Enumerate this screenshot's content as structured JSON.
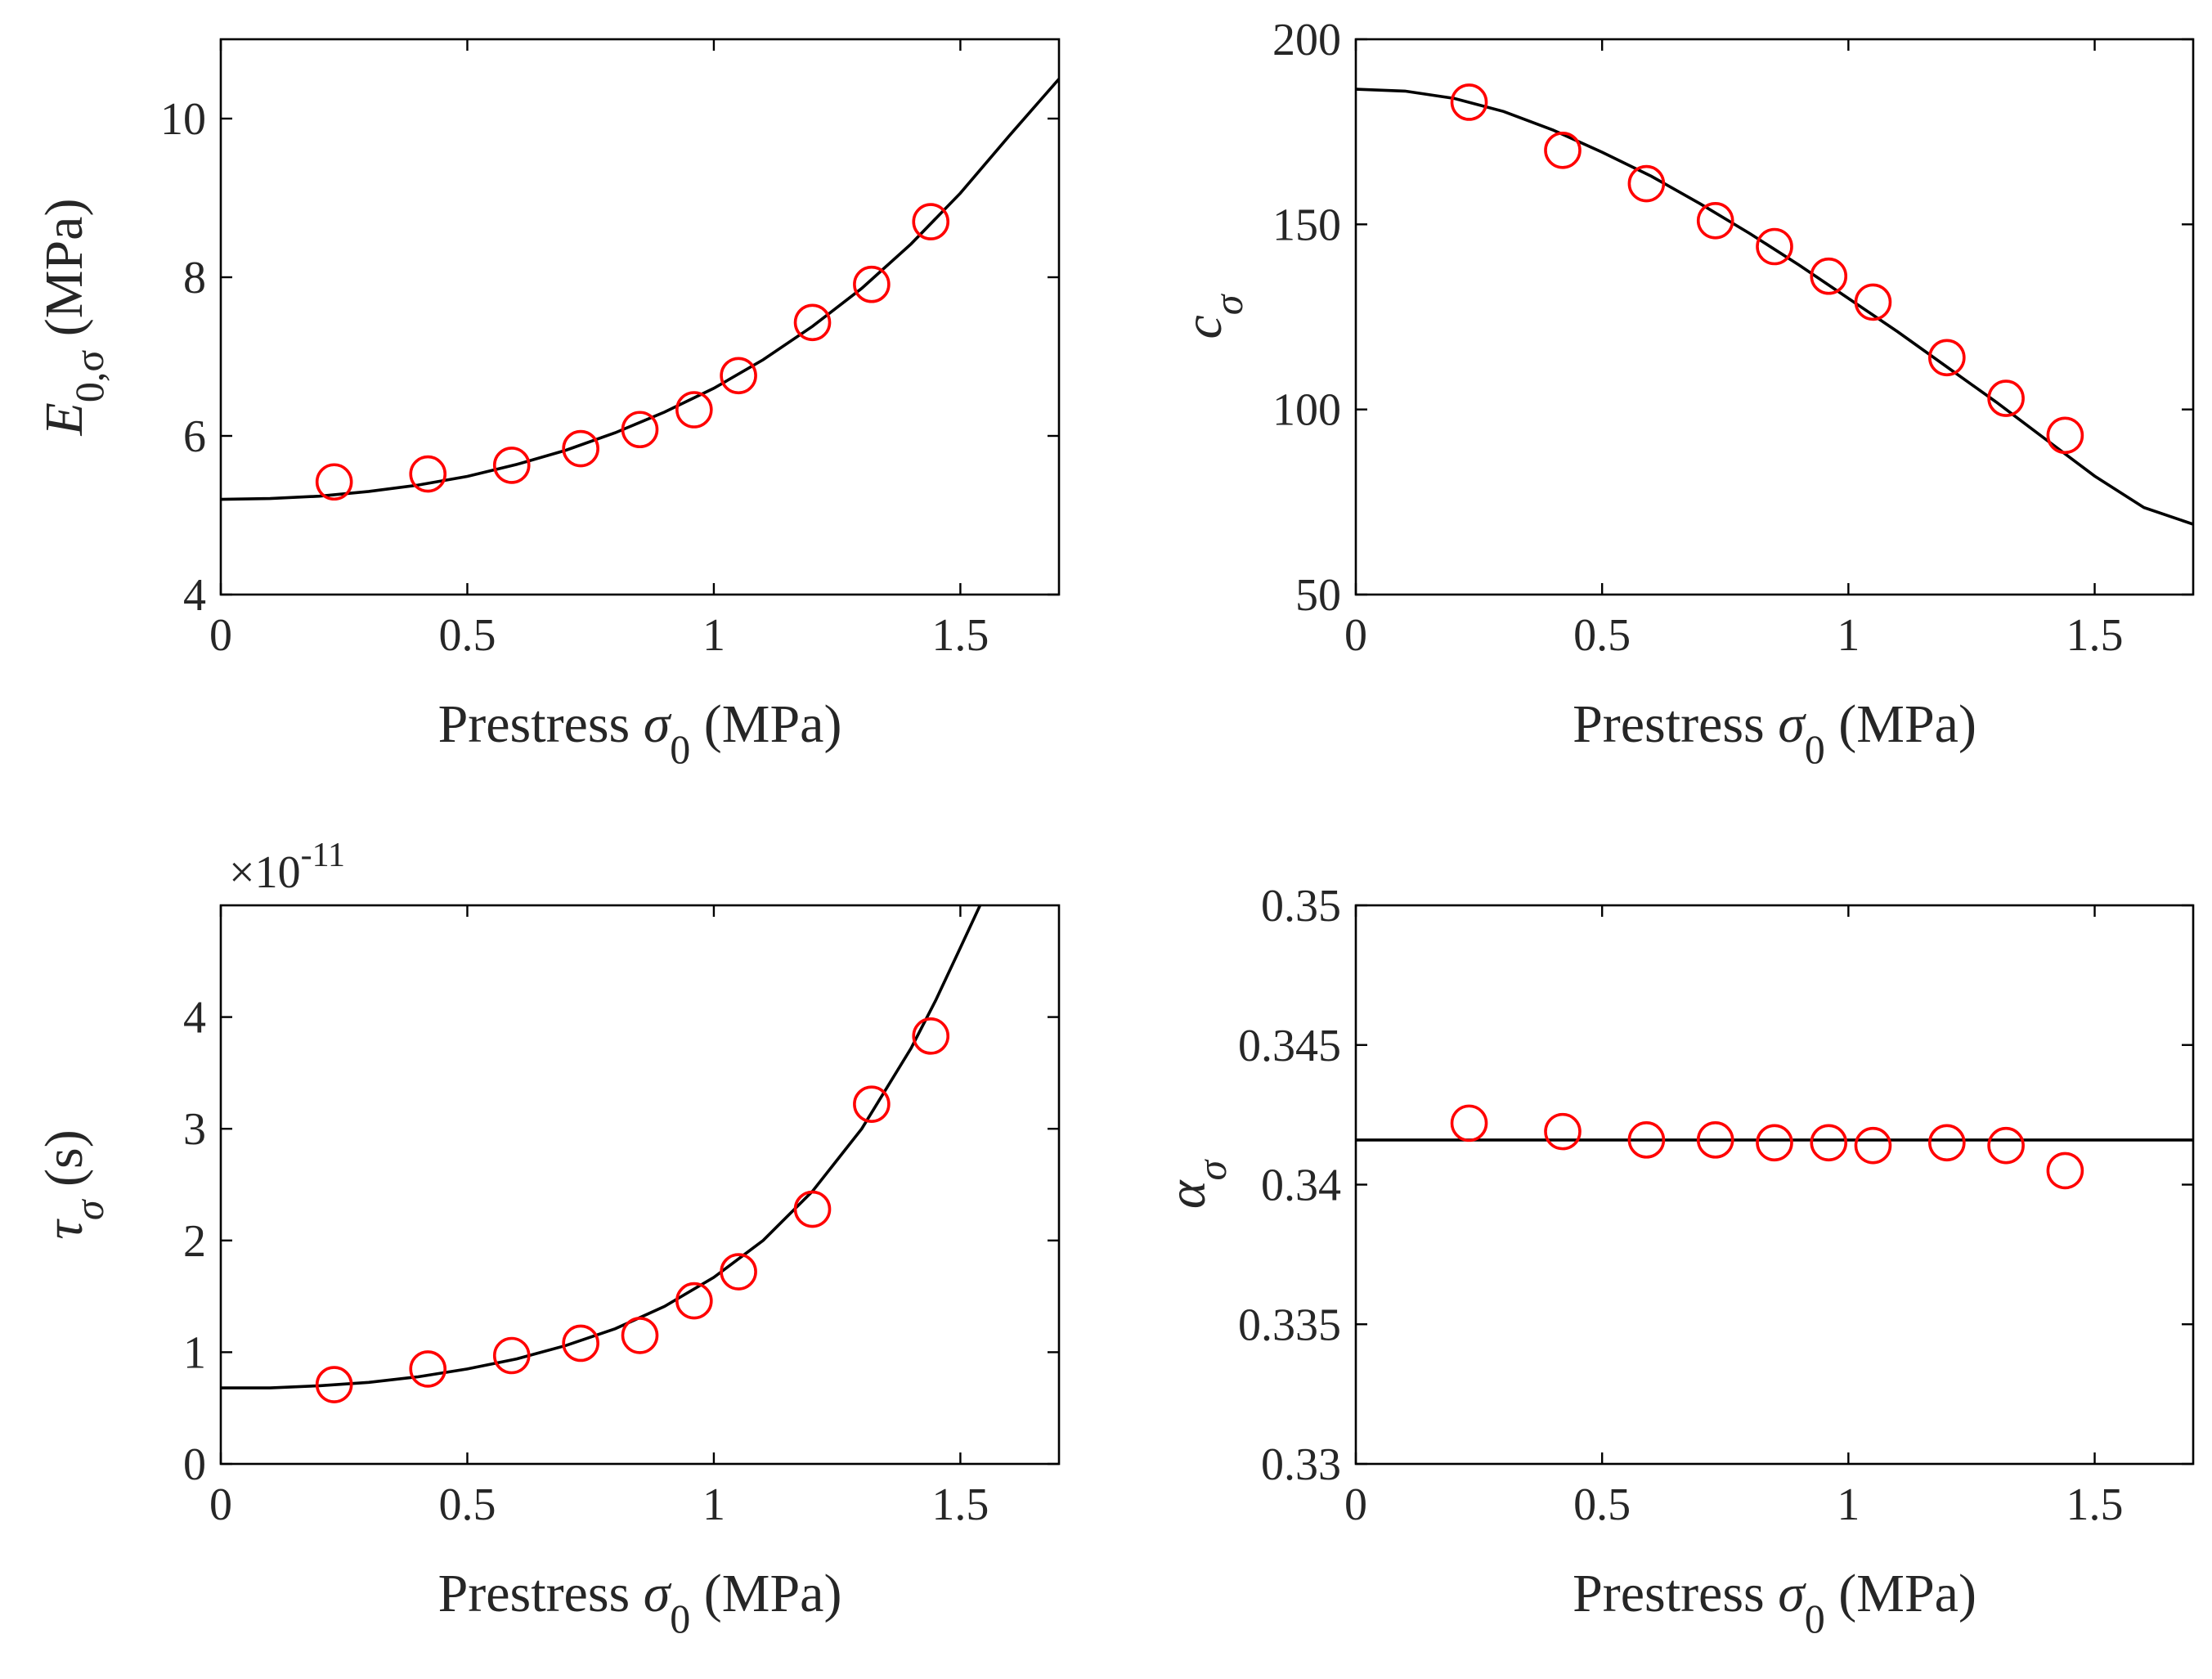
{
  "figure": {
    "panels": [
      "E0",
      "c",
      "tau",
      "alpha"
    ]
  },
  "chart_data": [
    {
      "id": "E0",
      "type": "scatter",
      "xlabel_prefix": "Prestress",
      "xlabel_symbol": "σ",
      "xlabel_sub": "0",
      "xlabel_unit": "(MPa)",
      "ylabel_symbol": "E",
      "ylabel_sub": "0,σ",
      "ylabel_unit": "(MPa)",
      "xlim": [
        0,
        1.7
      ],
      "ylim": [
        4,
        11
      ],
      "xticks": [
        0,
        0.5,
        1,
        1.5
      ],
      "xtick_labels": [
        "0",
        "0.5",
        "1",
        "1.5"
      ],
      "yticks": [
        4,
        6,
        8,
        10
      ],
      "ytick_labels": [
        "4",
        "6",
        "8",
        "10"
      ],
      "exponent_label": "",
      "marker_color": "#ff0000",
      "line_color": "#000000",
      "points_x": [
        0.23,
        0.42,
        0.59,
        0.73,
        0.85,
        0.96,
        1.05,
        1.2,
        1.32,
        1.44
      ],
      "points_y": [
        5.42,
        5.52,
        5.63,
        5.84,
        6.08,
        6.33,
        6.76,
        7.43,
        7.91,
        8.7
      ],
      "fit_x": [
        0,
        0.1,
        0.2,
        0.3,
        0.4,
        0.5,
        0.6,
        0.7,
        0.8,
        0.9,
        1.0,
        1.1,
        1.2,
        1.3,
        1.4,
        1.5,
        1.6,
        1.7
      ],
      "fit_y": [
        5.2,
        5.21,
        5.24,
        5.3,
        5.38,
        5.49,
        5.64,
        5.82,
        6.04,
        6.3,
        6.6,
        6.96,
        7.38,
        7.86,
        8.42,
        9.06,
        9.79,
        10.5
      ]
    },
    {
      "id": "c",
      "type": "scatter",
      "xlabel_prefix": "Prestress",
      "xlabel_symbol": "σ",
      "xlabel_sub": "0",
      "xlabel_unit": "(MPa)",
      "ylabel_symbol": "c",
      "ylabel_sub": "σ",
      "ylabel_unit": "",
      "xlim": [
        0,
        1.7
      ],
      "ylim": [
        50,
        200
      ],
      "xticks": [
        0,
        0.5,
        1,
        1.5
      ],
      "xtick_labels": [
        "0",
        "0.5",
        "1",
        "1.5"
      ],
      "yticks": [
        50,
        100,
        150,
        200
      ],
      "ytick_labels": [
        "50",
        "100",
        "150",
        "200"
      ],
      "exponent_label": "",
      "marker_color": "#ff0000",
      "line_color": "#000000",
      "points_x": [
        0.23,
        0.42,
        0.59,
        0.73,
        0.85,
        0.96,
        1.05,
        1.2,
        1.32,
        1.44
      ],
      "points_y": [
        183,
        170,
        161,
        151,
        144,
        136,
        129,
        114,
        103,
        93
      ],
      "fit_x": [
        0,
        0.1,
        0.2,
        0.3,
        0.4,
        0.5,
        0.6,
        0.7,
        0.8,
        0.9,
        1.0,
        1.1,
        1.2,
        1.3,
        1.4,
        1.5,
        1.6,
        1.7
      ],
      "fit_y": [
        186.5,
        186,
        184,
        180.5,
        175.5,
        169.5,
        163,
        155.5,
        147.5,
        139,
        130,
        121,
        111.5,
        102,
        92,
        82,
        73.5,
        69
      ]
    },
    {
      "id": "tau",
      "type": "scatter",
      "xlabel_prefix": "Prestress",
      "xlabel_symbol": "σ",
      "xlabel_sub": "0",
      "xlabel_unit": "(MPa)",
      "ylabel_symbol": "τ",
      "ylabel_sub": "σ",
      "ylabel_unit": "(s)",
      "xlim": [
        0,
        1.7
      ],
      "ylim": [
        0,
        5
      ],
      "xticks": [
        0,
        0.5,
        1,
        1.5
      ],
      "xtick_labels": [
        "0",
        "0.5",
        "1",
        "1.5"
      ],
      "yticks": [
        0,
        1,
        2,
        3,
        4
      ],
      "ytick_labels": [
        "0",
        "1",
        "2",
        "3",
        "4"
      ],
      "exponent_label": "×10",
      "exponent_power": "-11",
      "marker_color": "#ff0000",
      "line_color": "#000000",
      "points_x": [
        0.23,
        0.42,
        0.59,
        0.73,
        0.85,
        0.96,
        1.05,
        1.2,
        1.32,
        1.44
      ],
      "points_y": [
        0.71,
        0.85,
        0.97,
        1.08,
        1.15,
        1.46,
        1.72,
        2.28,
        3.22,
        3.83
      ],
      "fit_x": [
        0,
        0.1,
        0.2,
        0.3,
        0.4,
        0.5,
        0.6,
        0.7,
        0.8,
        0.9,
        1.0,
        1.1,
        1.2,
        1.3,
        1.4,
        1.45,
        1.5,
        1.54
      ],
      "fit_y": [
        0.68,
        0.68,
        0.7,
        0.73,
        0.78,
        0.85,
        0.94,
        1.06,
        1.21,
        1.41,
        1.67,
        2.0,
        2.44,
        3.0,
        3.72,
        4.15,
        4.62,
        5.0
      ]
    },
    {
      "id": "alpha",
      "type": "scatter",
      "xlabel_prefix": "Prestress",
      "xlabel_symbol": "σ",
      "xlabel_sub": "0",
      "xlabel_unit": "(MPa)",
      "ylabel_symbol": "α",
      "ylabel_sub": "σ",
      "ylabel_unit": "",
      "xlim": [
        0,
        1.7
      ],
      "ylim": [
        0.33,
        0.35
      ],
      "xticks": [
        0,
        0.5,
        1,
        1.5
      ],
      "xtick_labels": [
        "0",
        "0.5",
        "1",
        "1.5"
      ],
      "yticks": [
        0.33,
        0.335,
        0.34,
        0.345,
        0.35
      ],
      "ytick_labels": [
        "0.33",
        "0.335",
        "0.34",
        "0.345",
        "0.35"
      ],
      "exponent_label": "",
      "marker_color": "#ff0000",
      "line_color": "#000000",
      "points_x": [
        0.23,
        0.42,
        0.59,
        0.73,
        0.85,
        0.96,
        1.05,
        1.2,
        1.32,
        1.44
      ],
      "points_y": [
        0.3422,
        0.3419,
        0.3416,
        0.3416,
        0.3415,
        0.3415,
        0.3414,
        0.3415,
        0.3414,
        0.3405
      ],
      "fit_x": [
        0,
        1.7
      ],
      "fit_y": [
        0.3416,
        0.3416
      ]
    }
  ]
}
